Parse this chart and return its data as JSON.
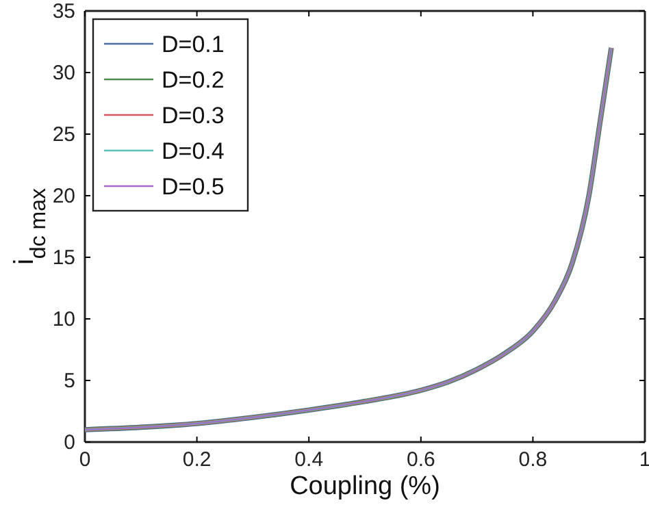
{
  "chart_data": {
    "type": "line",
    "xlabel": "Coupling (%)",
    "ylabel": "i$_{dc max}$",
    "x": [
      0,
      0.1,
      0.2,
      0.3,
      0.4,
      0.5,
      0.6,
      0.65,
      0.7,
      0.75,
      0.8,
      0.84,
      0.87,
      0.9,
      0.92,
      0.93,
      0.94
    ],
    "xlim": [
      0,
      1
    ],
    "xticks": [
      0,
      0.2,
      0.4,
      0.6,
      0.8,
      1
    ],
    "ylim": [
      0,
      35
    ],
    "yticks": [
      0,
      5,
      10,
      15,
      20,
      25,
      30,
      35
    ],
    "grid": false,
    "legend": "top left",
    "marker": "none",
    "line_style": "solid",
    "series": [
      {
        "name": "D=0.1",
        "color": "#4a6ea8",
        "values": [
          1,
          1.2,
          1.5,
          2,
          2.6,
          3.3,
          4.2,
          4.9,
          5.9,
          7.2,
          9,
          11.5,
          14.5,
          20,
          26,
          29,
          32
        ]
      },
      {
        "name": "D=0.2",
        "color": "#4f8a4f",
        "values": [
          1,
          1.2,
          1.5,
          2,
          2.6,
          3.3,
          4.2,
          4.9,
          5.9,
          7.2,
          9,
          11.5,
          14.5,
          20,
          26,
          29,
          32
        ]
      },
      {
        "name": "D=0.3",
        "color": "#d05a5a",
        "values": [
          1,
          1.2,
          1.5,
          2,
          2.6,
          3.3,
          4.2,
          4.9,
          5.9,
          7.2,
          9,
          11.5,
          14.5,
          20,
          26,
          29,
          32
        ]
      },
      {
        "name": "D=0.4",
        "color": "#5cc0b8",
        "values": [
          1,
          1.2,
          1.5,
          2,
          2.6,
          3.3,
          4.2,
          4.9,
          5.9,
          7.2,
          9,
          11.5,
          14.5,
          20,
          26,
          29,
          32
        ]
      },
      {
        "name": "D=0.5",
        "color": "#a468c8",
        "values": [
          1,
          1.2,
          1.5,
          2,
          2.6,
          3.3,
          4.2,
          4.9,
          5.9,
          7.2,
          9,
          11.5,
          14.5,
          20,
          26,
          29,
          32
        ]
      }
    ]
  }
}
